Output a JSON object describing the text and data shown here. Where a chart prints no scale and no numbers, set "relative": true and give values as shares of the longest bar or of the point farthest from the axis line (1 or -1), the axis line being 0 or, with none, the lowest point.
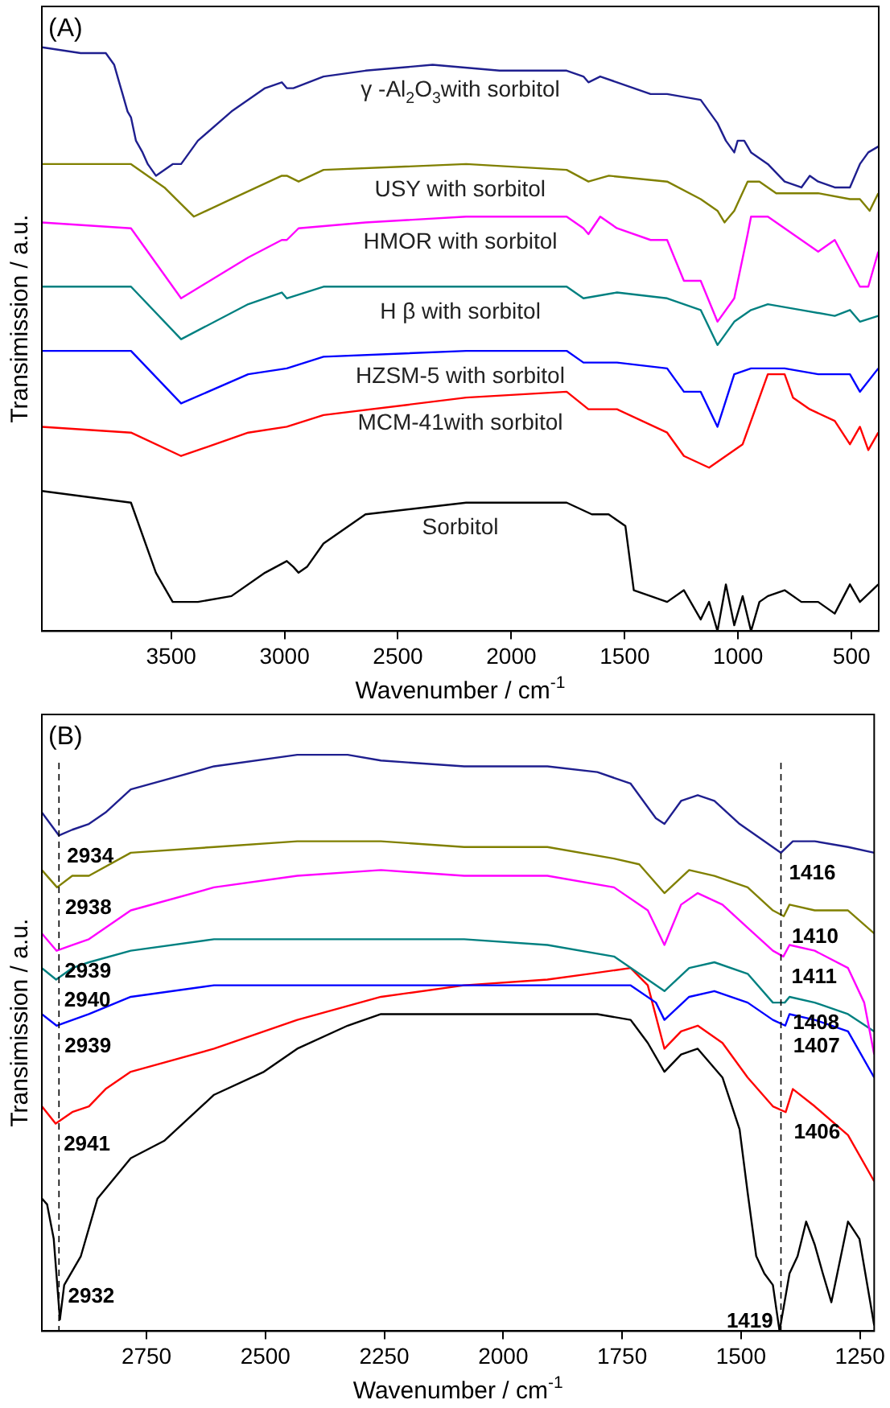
{
  "chart_data": [
    {
      "type": "line",
      "title": "(A)",
      "xlabel": "Wavenumber / cm$^{-1}$",
      "ylabel": "Transimission / a.u.",
      "relative": true,
      "xlim": [
        4070,
        380
      ],
      "xticks": [
        3500,
        3000,
        2500,
        2000,
        1500,
        1000,
        500
      ],
      "legend": false,
      "marker": "none",
      "grid": false,
      "series": [
        {
          "name": "γ -Al$_{2}$O$_{3}$with sorbitol",
          "color": "#1f1f8f",
          "x": [
            4070,
            3899,
            3788,
            3751,
            3729,
            3714,
            3692,
            3677,
            3655,
            3626,
            3603,
            3567,
            3493,
            3456,
            3382,
            3234,
            3086,
            3012,
            2990,
            2961,
            2828,
            2643,
            2347,
            2052,
            1756,
            1682,
            1660,
            1608,
            1534,
            1460,
            1386,
            1313,
            1165,
            1091,
            1054,
            1017,
            1002,
            973,
            943,
            869,
            795,
            721,
            684,
            647,
            574,
            507,
            463,
            426,
            382
          ],
          "values": [
            1.0,
            0.99,
            0.99,
            0.97,
            0.94,
            0.92,
            0.89,
            0.88,
            0.84,
            0.82,
            0.8,
            0.78,
            0.8,
            0.8,
            0.84,
            0.89,
            0.93,
            0.94,
            0.93,
            0.93,
            0.95,
            0.96,
            0.97,
            0.96,
            0.96,
            0.95,
            0.94,
            0.95,
            0.94,
            0.93,
            0.92,
            0.92,
            0.91,
            0.87,
            0.84,
            0.82,
            0.84,
            0.84,
            0.82,
            0.8,
            0.77,
            0.76,
            0.78,
            0.77,
            0.76,
            0.76,
            0.8,
            0.82,
            0.83
          ]
        },
        {
          "name": "USY with sorbitol",
          "color": "#808000",
          "x": [
            4070,
            3677,
            3530,
            3400,
            3234,
            3012,
            2990,
            2938,
            2828,
            2199,
            1756,
            1660,
            1570,
            1313,
            1165,
            1128,
            1091,
            1060,
            1017,
            958,
            906,
            832,
            647,
            507,
            463,
            420,
            382
          ],
          "values": [
            0.8,
            0.8,
            0.76,
            0.71,
            0.74,
            0.78,
            0.78,
            0.77,
            0.79,
            0.8,
            0.79,
            0.77,
            0.78,
            0.77,
            0.74,
            0.73,
            0.72,
            0.7,
            0.72,
            0.77,
            0.77,
            0.75,
            0.75,
            0.74,
            0.74,
            0.72,
            0.75
          ]
        },
        {
          "name": "HMOR with sorbitol",
          "color": "#ff00ff",
          "x": [
            4070,
            3677,
            3456,
            3160,
            3012,
            2990,
            2938,
            2643,
            2199,
            1756,
            1682,
            1660,
            1608,
            1534,
            1386,
            1313,
            1239,
            1165,
            1091,
            1017,
            958,
            943,
            869,
            795,
            721,
            647,
            574,
            463,
            426,
            382
          ],
          "values": [
            0.7,
            0.69,
            0.57,
            0.64,
            0.67,
            0.67,
            0.69,
            0.7,
            0.71,
            0.71,
            0.69,
            0.68,
            0.71,
            0.69,
            0.67,
            0.67,
            0.6,
            0.6,
            0.53,
            0.57,
            0.68,
            0.71,
            0.71,
            0.69,
            0.67,
            0.65,
            0.67,
            0.59,
            0.59,
            0.65
          ]
        },
        {
          "name": "H β with sorbitol",
          "color": "#008080",
          "x": [
            4070,
            3677,
            3456,
            3160,
            3012,
            2990,
            2828,
            2199,
            1756,
            1682,
            1534,
            1313,
            1165,
            1091,
            1054,
            1017,
            943,
            869,
            721,
            574,
            507,
            463,
            382
          ],
          "values": [
            0.59,
            0.59,
            0.5,
            0.56,
            0.58,
            0.57,
            0.59,
            0.59,
            0.59,
            0.57,
            0.58,
            0.57,
            0.55,
            0.49,
            0.51,
            0.53,
            0.55,
            0.56,
            0.55,
            0.54,
            0.55,
            0.53,
            0.54
          ]
        },
        {
          "name": "HZSM-5 with sorbitol",
          "color": "#0000ff",
          "x": [
            4070,
            3677,
            3456,
            3160,
            2990,
            2828,
            2199,
            1756,
            1682,
            1534,
            1313,
            1239,
            1165,
            1091,
            1017,
            943,
            795,
            647,
            507,
            463,
            382
          ],
          "values": [
            0.48,
            0.48,
            0.39,
            0.44,
            0.45,
            0.47,
            0.48,
            0.48,
            0.46,
            0.46,
            0.45,
            0.41,
            0.41,
            0.35,
            0.44,
            0.45,
            0.45,
            0.44,
            0.44,
            0.41,
            0.45
          ]
        },
        {
          "name": "MCM-41with sorbitol",
          "color": "#ff0000",
          "x": [
            4070,
            3677,
            3456,
            3160,
            2990,
            2828,
            2199,
            1756,
            1660,
            1534,
            1313,
            1239,
            1128,
            1054,
            980,
            869,
            795,
            758,
            684,
            574,
            507,
            463,
            426,
            382
          ],
          "values": [
            0.35,
            0.34,
            0.3,
            0.34,
            0.35,
            0.37,
            0.4,
            0.41,
            0.38,
            0.38,
            0.34,
            0.3,
            0.28,
            0.3,
            0.32,
            0.44,
            0.44,
            0.4,
            0.38,
            0.36,
            0.32,
            0.35,
            0.31,
            0.34
          ]
        },
        {
          "name": "Sorbitol",
          "color": "#000000",
          "x": [
            4070,
            3677,
            3567,
            3493,
            3382,
            3234,
            3086,
            2990,
            2961,
            2938,
            2901,
            2828,
            2643,
            2199,
            1756,
            1645,
            1571,
            1497,
            1460,
            1386,
            1313,
            1239,
            1165,
            1128,
            1091,
            1054,
            1017,
            980,
            943,
            906,
            869,
            795,
            721,
            647,
            574,
            507,
            463,
            382
          ],
          "values": [
            0.24,
            0.22,
            0.1,
            0.05,
            0.05,
            0.06,
            0.1,
            0.12,
            0.11,
            0.1,
            0.11,
            0.15,
            0.2,
            0.22,
            0.22,
            0.2,
            0.2,
            0.18,
            0.07,
            0.06,
            0.05,
            0.07,
            0.02,
            0.05,
            0.0,
            0.08,
            0.01,
            0.06,
            0.0,
            0.05,
            0.06,
            0.07,
            0.05,
            0.05,
            0.03,
            0.08,
            0.05,
            0.08
          ]
        }
      ]
    },
    {
      "type": "line",
      "title": "(B)",
      "xlabel": "Wavenumber / cm$^{-1}$",
      "ylabel": "Transimission / a.u.",
      "relative": true,
      "xlim": [
        2970,
        1220
      ],
      "xticks": [
        2750,
        2500,
        2250,
        2000,
        1750,
        1500,
        1250
      ],
      "legend": false,
      "marker": "none",
      "grid": false,
      "ref_lines": [
        {
          "axis": "x",
          "value": 2934,
          "color": "#000000",
          "line_style": "dashed"
        },
        {
          "axis": "x",
          "value": 1416,
          "color": "#000000",
          "line_style": "dashed"
        }
      ],
      "annotations": [
        {
          "text": "2934",
          "x": 2934,
          "y": 0.86
        },
        {
          "text": "2938",
          "x": 2938,
          "y": 0.77
        },
        {
          "text": "2939",
          "x": 2939,
          "y": 0.66
        },
        {
          "text": "2940",
          "x": 2940,
          "y": 0.61
        },
        {
          "text": "2939",
          "x": 2939,
          "y": 0.53
        },
        {
          "text": "2941",
          "x": 2941,
          "y": 0.36
        },
        {
          "text": "2932",
          "x": 2932,
          "y": 0.02
        },
        {
          "text": "1416",
          "x": 1416,
          "y": 0.83
        },
        {
          "text": "1410",
          "x": 1410,
          "y": 0.72
        },
        {
          "text": "1411",
          "x": 1411,
          "y": 0.65
        },
        {
          "text": "1408",
          "x": 1408,
          "y": 0.57
        },
        {
          "text": "1407",
          "x": 1407,
          "y": 0.53
        },
        {
          "text": "1406",
          "x": 1406,
          "y": 0.38
        },
        {
          "text": "1419",
          "x": 1419,
          "y": 0.0
        }
      ],
      "series": [
        {
          "color": "#1f1f8f",
          "x": [
            2970,
            2934,
            2906,
            2871,
            2836,
            2783,
            2608,
            2433,
            2327,
            2257,
            2082,
            1907,
            1802,
            1732,
            1679,
            1661,
            1626,
            1591,
            1556,
            1503,
            1451,
            1416,
            1391,
            1345,
            1275,
            1220
          ],
          "values": [
            0.9,
            0.86,
            0.87,
            0.88,
            0.9,
            0.94,
            0.98,
            1.0,
            1.0,
            0.99,
            0.98,
            0.98,
            0.97,
            0.95,
            0.89,
            0.88,
            0.92,
            0.93,
            0.92,
            0.88,
            0.85,
            0.83,
            0.85,
            0.85,
            0.84,
            0.83
          ]
        },
        {
          "color": "#808000",
          "x": [
            2970,
            2938,
            2906,
            2871,
            2783,
            2608,
            2433,
            2257,
            2082,
            1907,
            1767,
            1714,
            1661,
            1609,
            1556,
            1486,
            1433,
            1410,
            1398,
            1345,
            1275,
            1220
          ],
          "values": [
            0.8,
            0.77,
            0.79,
            0.79,
            0.83,
            0.84,
            0.85,
            0.85,
            0.84,
            0.84,
            0.82,
            0.81,
            0.76,
            0.8,
            0.79,
            0.77,
            0.73,
            0.72,
            0.74,
            0.73,
            0.73,
            0.69
          ]
        },
        {
          "color": "#ff00ff",
          "x": [
            2970,
            2939,
            2906,
            2871,
            2783,
            2608,
            2433,
            2257,
            2082,
            1907,
            1767,
            1696,
            1661,
            1626,
            1591,
            1539,
            1486,
            1433,
            1411,
            1398,
            1345,
            1275,
            1241,
            1220
          ],
          "values": [
            0.69,
            0.66,
            0.67,
            0.68,
            0.73,
            0.77,
            0.79,
            0.8,
            0.79,
            0.79,
            0.77,
            0.73,
            0.67,
            0.74,
            0.76,
            0.74,
            0.7,
            0.66,
            0.65,
            0.67,
            0.66,
            0.63,
            0.57,
            0.48
          ]
        },
        {
          "color": "#008080",
          "x": [
            2970,
            2940,
            2906,
            2871,
            2783,
            2608,
            2433,
            2257,
            2082,
            1907,
            1767,
            1696,
            1661,
            1609,
            1556,
            1486,
            1433,
            1408,
            1398,
            1345,
            1275,
            1220
          ],
          "values": [
            0.63,
            0.61,
            0.63,
            0.64,
            0.66,
            0.68,
            0.68,
            0.68,
            0.68,
            0.67,
            0.65,
            0.61,
            0.59,
            0.63,
            0.64,
            0.62,
            0.57,
            0.57,
            0.58,
            0.57,
            0.55,
            0.52
          ]
        },
        {
          "color": "#0000ff",
          "x": [
            2970,
            2939,
            2871,
            2783,
            2608,
            2433,
            2082,
            1907,
            1732,
            1679,
            1661,
            1609,
            1556,
            1486,
            1433,
            1407,
            1398,
            1345,
            1275,
            1220
          ],
          "values": [
            0.55,
            0.53,
            0.55,
            0.58,
            0.6,
            0.6,
            0.6,
            0.6,
            0.6,
            0.57,
            0.54,
            0.58,
            0.59,
            0.57,
            0.54,
            0.53,
            0.55,
            0.54,
            0.52,
            0.44
          ]
        },
        {
          "color": "#ff0000",
          "x": [
            2970,
            2941,
            2906,
            2871,
            2836,
            2783,
            2608,
            2433,
            2257,
            2082,
            1907,
            1819,
            1732,
            1696,
            1661,
            1626,
            1591,
            1539,
            1486,
            1433,
            1406,
            1391,
            1345,
            1275,
            1220
          ],
          "values": [
            0.39,
            0.36,
            0.38,
            0.39,
            0.42,
            0.45,
            0.49,
            0.54,
            0.58,
            0.6,
            0.61,
            0.62,
            0.63,
            0.6,
            0.49,
            0.52,
            0.53,
            0.5,
            0.44,
            0.39,
            0.38,
            0.42,
            0.39,
            0.34,
            0.26
          ]
        },
        {
          "color": "#000000",
          "x": [
            2970,
            2959,
            2945,
            2932,
            2923,
            2888,
            2853,
            2783,
            2713,
            2608,
            2503,
            2433,
            2327,
            2257,
            2187,
            2082,
            1907,
            1802,
            1732,
            1696,
            1661,
            1626,
            1591,
            1539,
            1503,
            1486,
            1468,
            1451,
            1433,
            1419,
            1398,
            1381,
            1363,
            1345,
            1328,
            1310,
            1275,
            1251,
            1220
          ],
          "values": [
            0.23,
            0.22,
            0.16,
            0.02,
            0.08,
            0.13,
            0.23,
            0.3,
            0.33,
            0.41,
            0.45,
            0.49,
            0.53,
            0.55,
            0.55,
            0.55,
            0.55,
            0.55,
            0.54,
            0.5,
            0.45,
            0.48,
            0.49,
            0.44,
            0.35,
            0.24,
            0.13,
            0.1,
            0.08,
            0.0,
            0.1,
            0.13,
            0.19,
            0.15,
            0.1,
            0.05,
            0.19,
            0.16,
            0.01
          ]
        }
      ]
    }
  ]
}
